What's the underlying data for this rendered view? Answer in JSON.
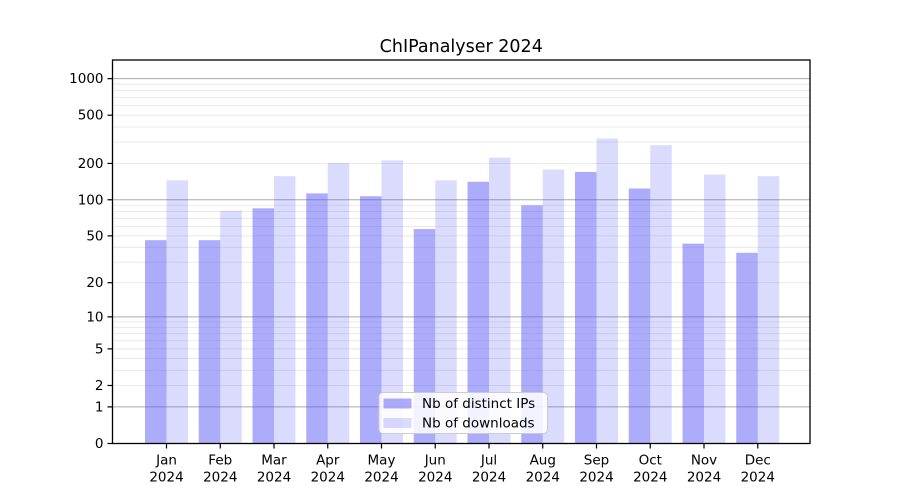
{
  "chart_data": {
    "type": "bar",
    "title": "ChIPanalyser 2024",
    "categories": [
      "Jan",
      "Feb",
      "Mar",
      "Apr",
      "May",
      "Jun",
      "Jul",
      "Aug",
      "Sep",
      "Oct",
      "Nov",
      "Dec"
    ],
    "x_year_label": "2024",
    "series": [
      {
        "name": "Nb of distinct IPs",
        "color": "#5a5af5",
        "opacity": 0.5,
        "values": [
          46,
          46,
          85,
          113,
          107,
          57,
          141,
          90,
          170,
          124,
          43,
          36
        ]
      },
      {
        "name": "Nb of downloads",
        "color": "#5a5af5",
        "opacity": 0.22,
        "values": [
          145,
          81,
          157,
          202,
          212,
          145,
          223,
          178,
          321,
          283,
          162,
          157
        ]
      }
    ],
    "y_axis": {
      "scale": "log10(1+x)",
      "ticks": [
        0,
        1,
        2,
        5,
        10,
        20,
        50,
        100,
        200,
        500,
        1000
      ],
      "major_gridlines_at": [
        1,
        10,
        100,
        1000
      ],
      "axis_top_value": 1435
    },
    "legend": {
      "position": "bottom-center"
    },
    "colors": {
      "major_grid": "#aaaaaa",
      "minor_grid": "#e8e8e8",
      "spine": "#000000",
      "legend_border": "#cccccc",
      "legend_background": "#ffffff"
    }
  }
}
